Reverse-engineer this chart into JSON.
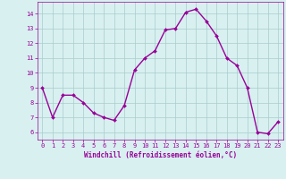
{
  "x": [
    0,
    1,
    2,
    3,
    4,
    5,
    6,
    7,
    8,
    9,
    10,
    11,
    12,
    13,
    14,
    15,
    16,
    17,
    18,
    19,
    20,
    21,
    22,
    23
  ],
  "y": [
    9.0,
    7.0,
    8.5,
    8.5,
    8.0,
    7.3,
    7.0,
    6.8,
    7.8,
    10.2,
    11.0,
    11.5,
    12.9,
    13.0,
    14.1,
    14.3,
    13.5,
    12.5,
    11.0,
    10.5,
    9.0,
    6.0,
    5.9,
    6.7
  ],
  "line_color": "#990099",
  "marker": "D",
  "marker_size": 2.0,
  "line_width": 1.0,
  "xlabel": "Windchill (Refroidissement éolien,°C)",
  "xlabel_color": "#990099",
  "bg_color": "#d8f0f0",
  "grid_color": "#aacccc",
  "tick_color": "#990099",
  "ylim": [
    5.5,
    14.8
  ],
  "yticks": [
    6,
    7,
    8,
    9,
    10,
    11,
    12,
    13,
    14
  ],
  "xlim": [
    -0.5,
    23.5
  ],
  "xticks": [
    0,
    1,
    2,
    3,
    4,
    5,
    6,
    7,
    8,
    9,
    10,
    11,
    12,
    13,
    14,
    15,
    16,
    17,
    18,
    19,
    20,
    21,
    22,
    23
  ]
}
